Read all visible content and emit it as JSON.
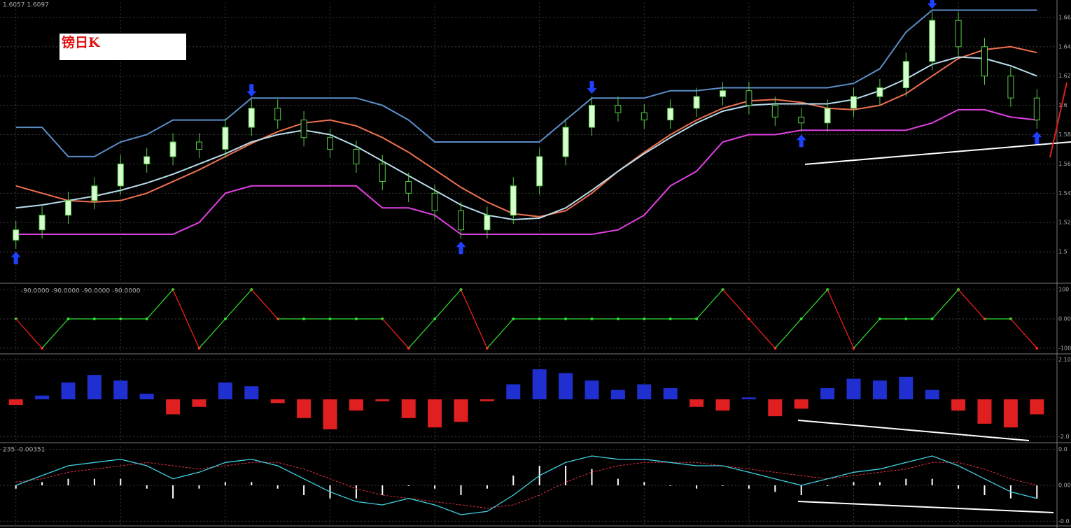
{
  "chart_data": [
    {
      "type": "candlestick",
      "title": "镑日K",
      "subtitle": "1.6057 1.6097",
      "open": [
        1.508,
        1.515,
        1.525,
        1.535,
        1.545,
        1.56,
        1.565,
        1.575,
        1.57,
        1.585,
        1.598,
        1.59,
        1.578,
        1.57,
        1.56,
        1.548,
        1.54,
        1.528,
        1.515,
        1.525,
        1.545,
        1.565,
        1.585,
        1.6,
        1.595,
        1.59,
        1.598,
        1.606,
        1.61,
        1.6,
        1.592,
        1.588,
        1.598,
        1.606,
        1.612,
        1.63,
        1.658,
        1.64,
        1.62,
        1.605
      ],
      "high": [
        1.521,
        1.531,
        1.541,
        1.551,
        1.566,
        1.571,
        1.581,
        1.581,
        1.591,
        1.604,
        1.604,
        1.596,
        1.584,
        1.576,
        1.566,
        1.554,
        1.546,
        1.534,
        1.531,
        1.551,
        1.571,
        1.591,
        1.606,
        1.606,
        1.601,
        1.604,
        1.612,
        1.616,
        1.616,
        1.606,
        1.598,
        1.604,
        1.612,
        1.618,
        1.636,
        1.664,
        1.664,
        1.646,
        1.626,
        1.611
      ],
      "low": [
        1.502,
        1.509,
        1.519,
        1.529,
        1.539,
        1.554,
        1.559,
        1.564,
        1.564,
        1.579,
        1.584,
        1.572,
        1.564,
        1.554,
        1.542,
        1.534,
        1.522,
        1.509,
        1.509,
        1.519,
        1.539,
        1.559,
        1.579,
        1.589,
        1.584,
        1.584,
        1.592,
        1.6,
        1.594,
        1.586,
        1.582,
        1.582,
        1.592,
        1.6,
        1.606,
        1.624,
        1.634,
        1.614,
        1.599,
        1.584
      ],
      "close": [
        1.515,
        1.525,
        1.535,
        1.545,
        1.56,
        1.565,
        1.575,
        1.57,
        1.585,
        1.598,
        1.59,
        1.578,
        1.57,
        1.56,
        1.548,
        1.54,
        1.528,
        1.515,
        1.525,
        1.545,
        1.565,
        1.585,
        1.6,
        1.595,
        1.59,
        1.598,
        1.606,
        1.61,
        1.6,
        1.592,
        1.588,
        1.598,
        1.606,
        1.612,
        1.63,
        1.658,
        1.64,
        1.62,
        1.605,
        1.59
      ],
      "up_color": "#d8ffd0",
      "down_color": "#000000",
      "wick_color": "#55cc44",
      "lines": [
        {
          "color": "#5b8ec8",
          "values": [
            1.585,
            1.585,
            1.565,
            1.565,
            1.575,
            1.58,
            1.59,
            1.59,
            1.59,
            1.605,
            1.605,
            1.605,
            1.605,
            1.605,
            1.6,
            1.59,
            1.575,
            1.575,
            1.575,
            1.575,
            1.575,
            1.59,
            1.605,
            1.605,
            1.605,
            1.61,
            1.61,
            1.612,
            1.612,
            1.612,
            1.612,
            1.612,
            1.615,
            1.625,
            1.65,
            1.665,
            1.665,
            1.665,
            1.665,
            1.665
          ]
        },
        {
          "color": "#e040e0",
          "values": [
            1.512,
            1.512,
            1.512,
            1.512,
            1.512,
            1.512,
            1.512,
            1.52,
            1.54,
            1.545,
            1.545,
            1.545,
            1.545,
            1.545,
            1.53,
            1.53,
            1.525,
            1.512,
            1.512,
            1.512,
            1.512,
            1.512,
            1.512,
            1.515,
            1.525,
            1.545,
            1.555,
            1.575,
            1.58,
            1.58,
            1.583,
            1.583,
            1.583,
            1.583,
            1.583,
            1.588,
            1.597,
            1.597,
            1.592,
            1.59
          ]
        },
        {
          "color": "#f07050",
          "values": [
            1.545,
            1.54,
            1.535,
            1.534,
            1.535,
            1.54,
            1.548,
            1.556,
            1.565,
            1.574,
            1.582,
            1.588,
            1.59,
            1.586,
            1.578,
            1.568,
            1.556,
            1.544,
            1.534,
            1.526,
            1.524,
            1.528,
            1.54,
            1.555,
            1.568,
            1.58,
            1.59,
            1.598,
            1.603,
            1.604,
            1.602,
            1.598,
            1.597,
            1.6,
            1.608,
            1.62,
            1.632,
            1.638,
            1.64,
            1.636
          ]
        },
        {
          "color": "#b8dcec",
          "values": [
            1.53,
            1.532,
            1.535,
            1.538,
            1.542,
            1.547,
            1.553,
            1.56,
            1.567,
            1.575,
            1.58,
            1.583,
            1.58,
            1.572,
            1.562,
            1.552,
            1.542,
            1.532,
            1.525,
            1.522,
            1.523,
            1.53,
            1.542,
            1.555,
            1.567,
            1.578,
            1.588,
            1.596,
            1.6,
            1.601,
            1.601,
            1.601,
            1.604,
            1.61,
            1.618,
            1.628,
            1.633,
            1.632,
            1.627,
            1.62
          ]
        }
      ],
      "sell_signals": [
        9,
        22,
        35
      ],
      "buy_signals": [
        0,
        17,
        30,
        39
      ],
      "signal_color": "#2040ff",
      "ylim": [
        1.48,
        1.67
      ],
      "yticks": [
        1.5,
        1.52,
        1.54,
        1.56,
        1.58,
        1.6,
        1.62,
        1.64,
        1.66
      ],
      "grid": true
    },
    {
      "type": "line",
      "title": "-90.0000 -90.0000 -90.0000 -90.0000",
      "values": [
        0,
        -100,
        0,
        0,
        0,
        0,
        100,
        -100,
        0,
        100,
        0,
        0,
        0,
        0,
        0,
        -100,
        0,
        100,
        -100,
        0,
        0,
        0,
        0,
        0,
        0,
        0,
        0,
        100,
        0,
        -100,
        0,
        100,
        -100,
        0,
        0,
        0,
        100,
        0,
        0,
        -100
      ],
      "up_color": "#30e030",
      "down_color": "#ff2020",
      "ylim": [
        -110,
        110
      ],
      "yticks": [
        -100,
        {
          "value": 0,
          "label": "0.00"
        },
        100
      ],
      "grid": true
    },
    {
      "type": "bar",
      "values": [
        -0.3,
        0.2,
        0.9,
        1.3,
        1.0,
        0.3,
        -0.8,
        -0.4,
        0.9,
        0.7,
        -0.2,
        -1.0,
        -1.6,
        -0.6,
        -0.1,
        -1.0,
        -1.5,
        -1.2,
        -0.1,
        0.8,
        1.6,
        1.4,
        1.0,
        0.5,
        0.8,
        0.6,
        -0.4,
        -0.6,
        0.1,
        -0.9,
        -0.5,
        0.6,
        1.1,
        1.0,
        1.2,
        0.5,
        -0.6,
        -1.3,
        -1.5,
        -0.8
      ],
      "up_color": "#2030d0",
      "down_color": "#e02020",
      "ylim": [
        -2.2,
        2.2
      ],
      "yticks": [
        {
          "value": -2,
          "label": "-2.0"
        },
        {
          "value": 2.1,
          "label": "2.10"
        }
      ],
      "grid": true
    },
    {
      "type": "macd",
      "title": "235 -0.00351",
      "line": {
        "color": "#40d0e0",
        "values": [
          0.0,
          0.003,
          0.006,
          0.007,
          0.008,
          0.006,
          0.002,
          0.004,
          0.007,
          0.008,
          0.006,
          0.002,
          -0.002,
          -0.005,
          -0.006,
          -0.004,
          -0.006,
          -0.009,
          -0.008,
          -0.003,
          0.003,
          0.007,
          0.009,
          0.008,
          0.008,
          0.007,
          0.006,
          0.006,
          0.004,
          0.002,
          0.0,
          0.002,
          0.004,
          0.005,
          0.007,
          0.009,
          0.006,
          0.002,
          -0.002,
          -0.004
        ]
      },
      "signal": {
        "color": "#e03040",
        "values": [
          0.001,
          0.002,
          0.004,
          0.005,
          0.006,
          0.007,
          0.006,
          0.005,
          0.006,
          0.007,
          0.007,
          0.005,
          0.002,
          -0.001,
          -0.003,
          -0.004,
          -0.005,
          -0.006,
          -0.007,
          -0.006,
          -0.003,
          0.001,
          0.004,
          0.006,
          0.007,
          0.007,
          0.007,
          0.006,
          0.005,
          0.004,
          0.003,
          0.002,
          0.003,
          0.004,
          0.005,
          0.007,
          0.007,
          0.005,
          0.002,
          0.0
        ]
      },
      "bars": {
        "color": "#ffffff",
        "values": [
          -0.001,
          0.001,
          0.002,
          0.002,
          0.002,
          -0.001,
          -0.004,
          -0.001,
          0.001,
          0.001,
          -0.001,
          -0.003,
          -0.004,
          -0.004,
          -0.003,
          0.0,
          -0.001,
          -0.003,
          -0.001,
          0.003,
          0.006,
          0.006,
          0.005,
          0.002,
          0.001,
          0.0,
          -0.001,
          0.0,
          -0.001,
          -0.002,
          -0.003,
          0.0,
          0.001,
          0.001,
          0.002,
          0.002,
          -0.001,
          -0.003,
          -0.004,
          -0.004
        ]
      },
      "ylim": [
        -0.012,
        0.012
      ],
      "yticks": [
        {
          "value": -0.011,
          "label": "-0.0"
        },
        {
          "value": 0,
          "label": "0.00"
        },
        {
          "value": 0.011,
          "label": "0.0"
        }
      ],
      "grid": true
    }
  ]
}
